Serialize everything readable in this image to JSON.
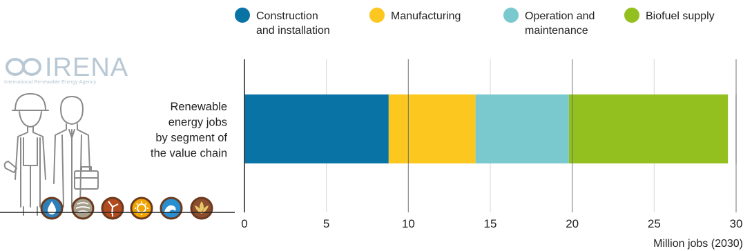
{
  "logo": {
    "name": "IRENA",
    "subtitle": "International Renewable Energy Agency"
  },
  "chart_data": {
    "type": "bar",
    "orientation": "horizontal",
    "stacked": true,
    "categories": [
      "Renewable energy jobs by segment of the value chain"
    ],
    "category_label_lines": [
      "Renewable",
      "energy jobs",
      "by segment of",
      "the value chain"
    ],
    "series": [
      {
        "name": "Construction and installation",
        "legend_lines": [
          "Construction",
          "and installation"
        ],
        "color": "#0a73a6",
        "values": [
          8.8
        ]
      },
      {
        "name": "Manufacturing",
        "legend_lines": [
          "Manufacturing"
        ],
        "color": "#fcc71e",
        "values": [
          5.3
        ]
      },
      {
        "name": "Operation and maintenance",
        "legend_lines": [
          "Operation and",
          "maintenance"
        ],
        "color": "#7ac9cf",
        "values": [
          5.7
        ]
      },
      {
        "name": "Biofuel supply",
        "legend_lines": [
          "Biofuel supply"
        ],
        "color": "#93c01f",
        "values": [
          9.7
        ]
      }
    ],
    "xlim": [
      0,
      30
    ],
    "xticks": [
      0,
      5,
      10,
      15,
      20,
      25,
      30
    ],
    "xlabel": "Million jobs (2030)",
    "grid": "vertical",
    "legend_position": "top"
  },
  "icons": [
    "water-drop-icon",
    "geothermal-icon",
    "wind-icon",
    "sun-icon",
    "hydro-wave-icon",
    "bioenergy-leaf-icon"
  ]
}
